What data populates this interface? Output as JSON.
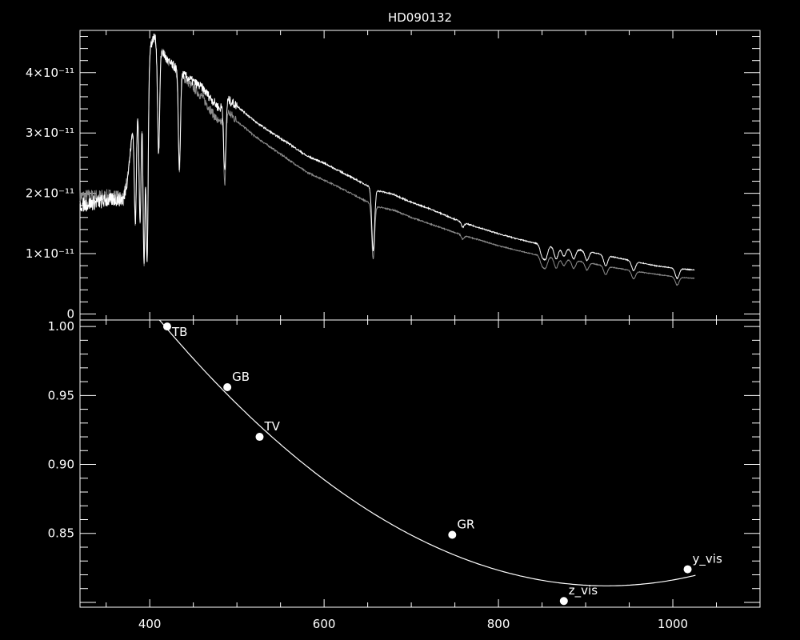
{
  "chart_data": [
    {
      "type": "line",
      "title": "HD090132",
      "xlabel": "",
      "ylabel": "",
      "xlim": [
        320,
        1100
      ],
      "ylim": [
        -1e-12,
        4.7e-11
      ],
      "x_ticks": [
        400,
        600,
        800,
        1000
      ],
      "y_ticks": [
        0,
        1e-11,
        2e-11,
        3e-11,
        4e-11
      ],
      "y_tick_labels": [
        "0",
        "1×10⁻¹¹",
        "2×10⁻¹¹",
        "3×10⁻¹¹",
        "4×10⁻¹¹"
      ],
      "grid": false,
      "colors": {
        "series_1": "#ffffff",
        "series_2": "#8c8c8c",
        "background": "#000000",
        "axes": "#ffffff"
      },
      "series": [
        {
          "color": "#ffffff",
          "x": [
            320,
            340,
            360,
            370,
            375,
            380,
            385,
            395,
            405,
            420,
            440,
            460,
            480,
            490,
            500,
            520,
            540,
            560,
            580,
            600,
            620,
            640,
            660,
            680,
            700,
            720,
            740,
            760,
            780,
            800,
            820,
            840,
            860,
            880,
            900,
            920,
            940,
            960,
            980,
            1000,
            1025
          ],
          "y": [
            1.8e-11,
            1.85e-11,
            1.9e-11,
            1.9e-11,
            2.3e-11,
            3e-11,
            3.5e-11,
            4.2e-11,
            4.6e-11,
            4.2e-11,
            3.95e-11,
            3.75e-11,
            3.4e-11,
            3.55e-11,
            3.45e-11,
            3.2e-11,
            3e-11,
            2.82e-11,
            2.62e-11,
            2.5e-11,
            2.35e-11,
            2.2e-11,
            2.05e-11,
            1.98e-11,
            1.85e-11,
            1.75e-11,
            1.63e-11,
            1.51e-11,
            1.42e-11,
            1.33e-11,
            1.25e-11,
            1.18e-11,
            1.12e-11,
            1.08e-11,
            1.05e-11,
            9.8e-12,
            9.2e-12,
            8.6e-12,
            8e-12,
            7.6e-12,
            7.3e-12
          ]
        },
        {
          "color": "#8c8c8c",
          "x": [
            320,
            340,
            360,
            370,
            375,
            380,
            385,
            395,
            405,
            420,
            440,
            460,
            480,
            490,
            500,
            520,
            540,
            560,
            580,
            600,
            620,
            640,
            660,
            680,
            700,
            720,
            740,
            760,
            780,
            800,
            820,
            840,
            860,
            880,
            900,
            920,
            940,
            960,
            980,
            1000,
            1025
          ],
          "y": [
            1.95e-11,
            1.95e-11,
            1.95e-11,
            1.9e-11,
            2.3e-11,
            3e-11,
            3.5e-11,
            4.2e-11,
            4.6e-11,
            4.2e-11,
            3.9e-11,
            3.6e-11,
            3.15e-11,
            3.35e-11,
            3.2e-11,
            2.95e-11,
            2.75e-11,
            2.55e-11,
            2.35e-11,
            2.22e-11,
            2.08e-11,
            1.93e-11,
            1.78e-11,
            1.72e-11,
            1.6e-11,
            1.5e-11,
            1.4e-11,
            1.3e-11,
            1.22e-11,
            1.13e-11,
            1.06e-11,
            9.9e-12,
            9.4e-12,
            9e-12,
            8.6e-12,
            8e-12,
            7.5e-12,
            7e-12,
            6.6e-12,
            6.2e-12,
            5.9e-12
          ]
        }
      ],
      "absorption_lines": [
        {
          "x": 383.5,
          "depth": 0.55
        },
        {
          "x": 388.9,
          "depth": 0.6
        },
        {
          "x": 393.4,
          "depth": 0.78
        },
        {
          "x": 397.0,
          "depth": 0.78
        },
        {
          "x": 410.2,
          "depth": 0.4
        },
        {
          "x": 434.0,
          "depth": 0.4
        },
        {
          "x": 486.1,
          "depth": 0.33
        },
        {
          "x": 656.3,
          "depth": 0.5
        },
        {
          "x": 759.0,
          "depth": 0.05
        },
        {
          "x": 850.0,
          "depth": 0.15
        },
        {
          "x": 854.2,
          "depth": 0.18
        },
        {
          "x": 866.2,
          "depth": 0.18
        },
        {
          "x": 875.0,
          "depth": 0.12
        },
        {
          "x": 886.3,
          "depth": 0.15
        },
        {
          "x": 901.5,
          "depth": 0.15
        },
        {
          "x": 923.0,
          "depth": 0.18
        },
        {
          "x": 955.0,
          "depth": 0.18
        },
        {
          "x": 1005.0,
          "depth": 0.22
        }
      ]
    },
    {
      "type": "scatter",
      "xlabel": "",
      "ylabel": "",
      "xlim": [
        320,
        1100
      ],
      "ylim": [
        0.7965,
        1.0047
      ],
      "x_ticks": [
        400,
        600,
        800,
        1000
      ],
      "x_tick_labels": [
        "400",
        "600",
        "800",
        "1000"
      ],
      "y_ticks": [
        0.85,
        0.9,
        0.95,
        1.0
      ],
      "y_tick_labels": [
        "0.85",
        "0.90",
        "0.95",
        "1.00"
      ],
      "grid": false,
      "points": [
        {
          "label": "TB",
          "x": 420,
          "y": 1.0
        },
        {
          "label": "GB",
          "x": 489,
          "y": 0.956
        },
        {
          "label": "TV",
          "x": 526,
          "y": 0.92
        },
        {
          "label": "GR",
          "x": 747,
          "y": 0.849
        },
        {
          "label": "z_vis",
          "x": 875,
          "y": 0.801
        },
        {
          "label": "y_vis",
          "x": 1017,
          "y": 0.824
        }
      ],
      "fit_curve": {
        "type": "quadratic",
        "x_range": [
          411,
          1028
        ],
        "vertex_x": 924,
        "vertex_y": 0.812,
        "a": 7.33e-07
      }
    }
  ]
}
